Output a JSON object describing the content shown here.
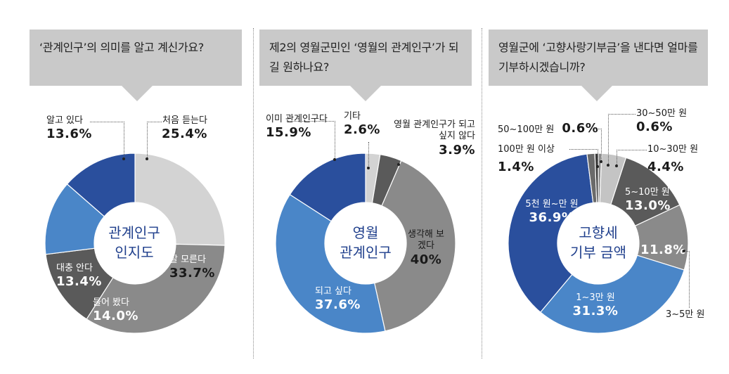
{
  "colors": {
    "navy": "#2a4f9d",
    "blue": "#4a86c8",
    "lightgray": "#d3d3d3",
    "gray": "#8a8a8a",
    "darkgray": "#5a5a5a",
    "question_bg": "#c9c9c9"
  },
  "chart_data": [
    {
      "type": "pie",
      "title": "‘관계인구’의 의미를 알고 계신가요?",
      "center_label": [
        "관계인구",
        "인지도"
      ],
      "slices": [
        {
          "label": "처음 듣는다",
          "value": 25.4,
          "display": "25.4%",
          "color": "#d3d3d3"
        },
        {
          "label": "잘 모른다",
          "value": 33.7,
          "display": "33.7%",
          "color": "#8a8a8a"
        },
        {
          "label": "들어 봤다",
          "value": 14.0,
          "display": "14.0%",
          "color": "#5a5a5a"
        },
        {
          "label": "대충 안다",
          "value": 13.4,
          "display": "13.4%",
          "color": "#4a86c8"
        },
        {
          "label": "알고 있다",
          "value": 13.6,
          "display": "13.6%",
          "color": "#2a4f9d"
        }
      ]
    },
    {
      "type": "pie",
      "title": "제2의 영월군민인 ‘영월의 관계인구’가 되길 원하나요?",
      "center_label": [
        "영월",
        "관계인구"
      ],
      "slices": [
        {
          "label": "기타",
          "value": 2.6,
          "display": "2.6%",
          "color": "#d3d3d3"
        },
        {
          "label": "영월 관계인구가 되고 싶지 않다",
          "value": 3.9,
          "display": "3.9%",
          "color": "#5a5a5a"
        },
        {
          "label": "생각해 보겠다",
          "value": 40,
          "display": "40%",
          "color": "#8a8a8a"
        },
        {
          "label": "되고 싶다",
          "value": 37.6,
          "display": "37.6%",
          "color": "#4a86c8"
        },
        {
          "label": "이미 관계인구다",
          "value": 15.9,
          "display": "15.9%",
          "color": "#2a4f9d"
        }
      ]
    },
    {
      "type": "pie",
      "title": "영월군에 ‘고향사랑기부금’을 낸다면 얼마를 기부하시겠습니까?",
      "center_label": [
        "고향세",
        "기부 금액"
      ],
      "slices": [
        {
          "label": "30~50만 원",
          "value": 0.6,
          "display": "0.6%",
          "color": "#8a8a8a"
        },
        {
          "label": "10~30만 원",
          "value": 4.4,
          "display": "4.4%",
          "color": "#c4c4c4"
        },
        {
          "label": "5~10만 원",
          "value": 13.0,
          "display": "13.0%",
          "color": "#5a5a5a"
        },
        {
          "label": "3~5만 원",
          "value": 11.8,
          "display": "11.8%",
          "color": "#8a8a8a"
        },
        {
          "label": "1~3만 원",
          "value": 31.3,
          "display": "31.3%",
          "color": "#4a86c8"
        },
        {
          "label": "5천 원~만 원",
          "value": 36.9,
          "display": "36.9%",
          "color": "#2a4f9d"
        },
        {
          "label": "100만 원 이상",
          "value": 1.4,
          "display": "1.4%",
          "color": "#6a6a6a"
        },
        {
          "label": "50~100만 원",
          "value": 0.6,
          "display": "0.6%",
          "color": "#3a3a3a"
        }
      ]
    }
  ]
}
